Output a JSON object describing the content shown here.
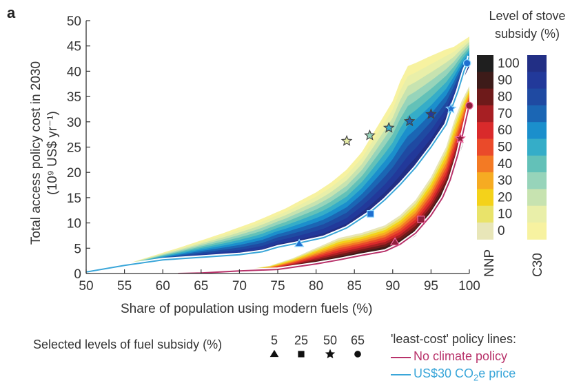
{
  "panel_label": "a",
  "colors": {
    "nnp_scale": [
      "#e8e6b8",
      "#e9e36a",
      "#f4d21a",
      "#f6ab22",
      "#f37a24",
      "#ea4a2a",
      "#d92a2b",
      "#a71f23",
      "#6e1a1a",
      "#3d1b19",
      "#1f1f1f"
    ],
    "c30_scale": [
      "#f7f2a0",
      "#e9efa9",
      "#c7e3b0",
      "#97d4ba",
      "#63c1b8",
      "#35adc8",
      "#1b8fcc",
      "#1b66b4",
      "#1f4aa2",
      "#22399a",
      "#222f85"
    ],
    "no_climate_line": "#b8326a",
    "co2_line": "#3aa6d9"
  },
  "chart_data": {
    "type": "area",
    "xlabel": "Share of population using modern fuels (%)",
    "ylabel_line1": "Total access policy cost in 2030",
    "ylabel_line2": "(10⁹ US$ yr⁻¹)",
    "xlim": [
      50,
      100
    ],
    "ylim": [
      0,
      50
    ],
    "xticks": [
      50,
      55,
      60,
      65,
      70,
      75,
      80,
      85,
      90,
      95,
      100
    ],
    "yticks": [
      0,
      5,
      10,
      15,
      20,
      25,
      30,
      35,
      40,
      45,
      50
    ],
    "colorbar": {
      "title_line1": "Level of stove",
      "title_line2": "subsidy (%)",
      "levels": [
        100,
        90,
        80,
        70,
        60,
        50,
        40,
        30,
        20,
        10,
        0
      ],
      "labels": [
        "NNP",
        "C30"
      ]
    },
    "c30_envelope": {
      "upper": [
        [
          50,
          0.2
        ],
        [
          56,
          2.2
        ],
        [
          62,
          5.0
        ],
        [
          68,
          8.0
        ],
        [
          72,
          10.2
        ],
        [
          76,
          12.8
        ],
        [
          80,
          16.0
        ],
        [
          82,
          18.0
        ],
        [
          84,
          20.5
        ],
        [
          86,
          24.0
        ],
        [
          88,
          29.0
        ],
        [
          90,
          34.0
        ],
        [
          91,
          38.0
        ],
        [
          92,
          41.0
        ],
        [
          93,
          41.6
        ],
        [
          95,
          43.0
        ],
        [
          97,
          44.3
        ],
        [
          98,
          44.8
        ],
        [
          100,
          46.8
        ]
      ],
      "lower": [
        [
          50,
          0.2
        ],
        [
          55,
          1.5
        ],
        [
          60,
          2.6
        ],
        [
          65,
          3.2
        ],
        [
          70,
          3.6
        ],
        [
          73,
          4.2
        ],
        [
          75,
          5.2
        ],
        [
          78,
          6.0
        ],
        [
          81,
          7.0
        ],
        [
          84,
          8.8
        ],
        [
          87,
          12.0
        ],
        [
          89,
          14.5
        ],
        [
          91,
          17.5
        ],
        [
          93,
          21.0
        ],
        [
          95,
          25.0
        ],
        [
          97,
          30.0
        ],
        [
          98,
          34.0
        ],
        [
          99,
          38.0
        ],
        [
          100,
          41.0
        ]
      ]
    },
    "nnp_envelope": {
      "upper": [
        [
          65,
          0.1
        ],
        [
          70,
          0.5
        ],
        [
          74,
          1.5
        ],
        [
          77,
          3.0
        ],
        [
          80,
          5.0
        ],
        [
          83,
          7.0
        ],
        [
          86,
          8.0
        ],
        [
          89,
          9.5
        ],
        [
          91,
          11.5
        ],
        [
          93,
          14.5
        ],
        [
          95,
          19.0
        ],
        [
          97,
          25.0
        ],
        [
          98,
          30.0
        ],
        [
          99,
          34.0
        ],
        [
          100,
          37.0
        ]
      ],
      "lower": [
        [
          65,
          0.1
        ],
        [
          70,
          0.3
        ],
        [
          75,
          0.7
        ],
        [
          80,
          1.8
        ],
        [
          83,
          2.5
        ],
        [
          86,
          3.5
        ],
        [
          89,
          4.3
        ],
        [
          91,
          5.5
        ],
        [
          93,
          7.5
        ],
        [
          95,
          11.0
        ],
        [
          97,
          16.0
        ],
        [
          98,
          20.0
        ],
        [
          99,
          25.0
        ],
        [
          100,
          32.0
        ]
      ]
    },
    "series": [
      {
        "name": "No climate policy",
        "points": [
          [
            62,
            0
          ],
          [
            65,
            0.1
          ],
          [
            70,
            0.5
          ],
          [
            75,
            0.8
          ],
          [
            80,
            1.9
          ],
          [
            83,
            2.7
          ],
          [
            86,
            3.6
          ],
          [
            89,
            4.4
          ],
          [
            91,
            5.8
          ],
          [
            93,
            8.0
          ],
          [
            95,
            11.5
          ],
          [
            96.5,
            15.0
          ],
          [
            97.5,
            18.5
          ],
          [
            98.5,
            23.5
          ],
          [
            99.2,
            28.0
          ],
          [
            99.8,
            32.0
          ],
          [
            100,
            33.5
          ]
        ]
      },
      {
        "name": "US$30 CO2e price",
        "points": [
          [
            50,
            0.3
          ],
          [
            55,
            1.6
          ],
          [
            60,
            2.7
          ],
          [
            65,
            3.2
          ],
          [
            70,
            3.7
          ],
          [
            73,
            4.3
          ],
          [
            75,
            5.2
          ],
          [
            78,
            6.1
          ],
          [
            81,
            7.1
          ],
          [
            84,
            9.0
          ],
          [
            87,
            12.0
          ],
          [
            89,
            14.6
          ],
          [
            91,
            17.6
          ],
          [
            93,
            21.0
          ],
          [
            95,
            25.0
          ],
          [
            97,
            29.5
          ],
          [
            97.7,
            32.7
          ],
          [
            98.5,
            36.0
          ],
          [
            99.3,
            40.0
          ],
          [
            99.8,
            41.8
          ],
          [
            100,
            43.0
          ]
        ]
      }
    ],
    "markers_no_climate": [
      {
        "shape": "triangle",
        "x": 90.3,
        "y": 6.2
      },
      {
        "shape": "square",
        "x": 93.7,
        "y": 10.7
      },
      {
        "shape": "star",
        "x": 98.8,
        "y": 26.7
      },
      {
        "shape": "circle",
        "x": 100,
        "y": 33.2
      }
    ],
    "markers_co2": [
      {
        "shape": "triangle",
        "x": 77.8,
        "y": 5.9
      },
      {
        "shape": "square",
        "x": 87.1,
        "y": 11.8
      },
      {
        "shape": "star",
        "x": 97.6,
        "y": 32.6
      },
      {
        "shape": "circle",
        "x": 99.7,
        "y": 41.6
      }
    ],
    "subsidy_stars": [
      {
        "x": 84.0,
        "y": 26.2,
        "level": 10
      },
      {
        "x": 87.0,
        "y": 27.3,
        "level": 30
      },
      {
        "x": 89.5,
        "y": 28.8,
        "level": 50
      },
      {
        "x": 92.2,
        "y": 30.1,
        "level": 70
      },
      {
        "x": 95.0,
        "y": 31.5,
        "level": 90
      }
    ],
    "fuel_subsidy_legend": {
      "title": "Selected levels of fuel subsidy (%)",
      "items": [
        {
          "label": "5",
          "shape": "triangle"
        },
        {
          "label": "25",
          "shape": "square"
        },
        {
          "label": "50",
          "shape": "star"
        },
        {
          "label": "65",
          "shape": "circle"
        }
      ]
    },
    "policy_legend": {
      "title": "'least-cost' policy lines:",
      "items": [
        {
          "label": "No climate policy"
        },
        {
          "label_main": "US$30 CO",
          "label_sub": "2",
          "label_tail": "e price"
        }
      ]
    }
  }
}
